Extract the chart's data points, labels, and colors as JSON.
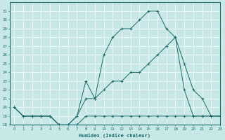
{
  "xlabel": "Humidex (Indice chaleur)",
  "xlim": [
    -0.5,
    23
  ],
  "ylim": [
    18,
    32
  ],
  "yticks": [
    18,
    19,
    20,
    21,
    22,
    23,
    24,
    25,
    26,
    27,
    28,
    29,
    30,
    31
  ],
  "xticks": [
    0,
    1,
    2,
    3,
    4,
    5,
    6,
    7,
    8,
    9,
    10,
    11,
    12,
    13,
    14,
    15,
    16,
    17,
    18,
    19,
    20,
    21,
    22,
    23
  ],
  "bg_color": "#c8e8e8",
  "line_color": "#1a6b6b",
  "grid_color": "#b0d8d8",
  "line1_x": [
    0,
    1,
    2,
    3,
    4,
    5,
    6,
    7,
    8,
    9,
    10,
    11,
    12,
    13,
    14,
    15,
    16,
    17,
    18,
    19,
    20,
    21,
    22,
    23
  ],
  "line1_y": [
    20,
    19,
    19,
    19,
    19,
    18,
    18,
    18,
    19,
    19,
    19,
    19,
    19,
    19,
    19,
    19,
    19,
    19,
    19,
    19,
    19,
    19,
    19,
    19
  ],
  "line2_x": [
    0,
    1,
    2,
    3,
    4,
    5,
    6,
    7,
    8,
    9,
    10,
    11,
    12,
    13,
    14,
    15,
    16,
    17,
    18,
    19,
    20,
    21,
    22,
    23
  ],
  "line2_y": [
    20,
    19,
    19,
    19,
    19,
    18,
    18,
    19,
    21,
    21,
    22,
    23,
    23,
    24,
    24,
    25,
    26,
    27,
    28,
    25,
    22,
    21,
    19,
    19
  ],
  "line3_x": [
    0,
    1,
    2,
    3,
    4,
    5,
    6,
    7,
    8,
    9,
    10,
    11,
    12,
    13,
    14,
    15,
    16,
    17,
    18,
    19,
    20,
    21,
    22,
    23
  ],
  "line3_y": [
    20,
    19,
    19,
    19,
    19,
    18,
    18,
    19,
    23,
    21,
    26,
    28,
    29,
    29,
    30,
    31,
    31,
    29,
    28,
    22,
    19,
    19,
    19,
    19
  ]
}
